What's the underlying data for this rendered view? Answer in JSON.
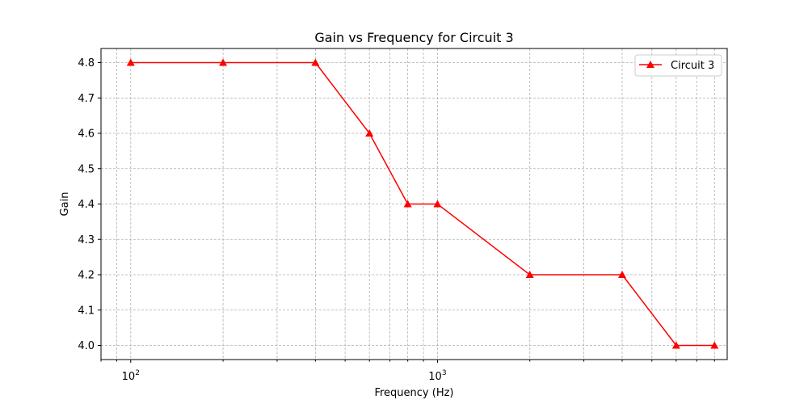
{
  "chart_data": {
    "type": "line",
    "title": "Gain vs Frequency for Circuit 3",
    "xlabel": "Frequency (Hz)",
    "ylabel": "Gain",
    "xscale": "log",
    "xlim": [
      80,
      8800
    ],
    "ylim": [
      3.96,
      4.84
    ],
    "grid": true,
    "legend_position": "top-right",
    "x_tick_labels": [
      {
        "value": 100,
        "base": "10",
        "exp": "2"
      },
      {
        "value": 1000,
        "base": "10",
        "exp": "3"
      }
    ],
    "y_ticks": [
      4.0,
      4.1,
      4.2,
      4.3,
      4.4,
      4.5,
      4.6,
      4.7,
      4.8
    ],
    "y_tick_labels": [
      "4.0",
      "4.1",
      "4.2",
      "4.3",
      "4.4",
      "4.5",
      "4.6",
      "4.7",
      "4.8"
    ],
    "series": [
      {
        "name": "Circuit 3",
        "color": "#ff0000",
        "marker": "triangle-up",
        "x": [
          100,
          200,
          400,
          600,
          800,
          1000,
          2000,
          4000,
          6000,
          8000
        ],
        "y": [
          4.8,
          4.8,
          4.8,
          4.6,
          4.4,
          4.4,
          4.2,
          4.2,
          4.0,
          4.0
        ]
      }
    ]
  }
}
